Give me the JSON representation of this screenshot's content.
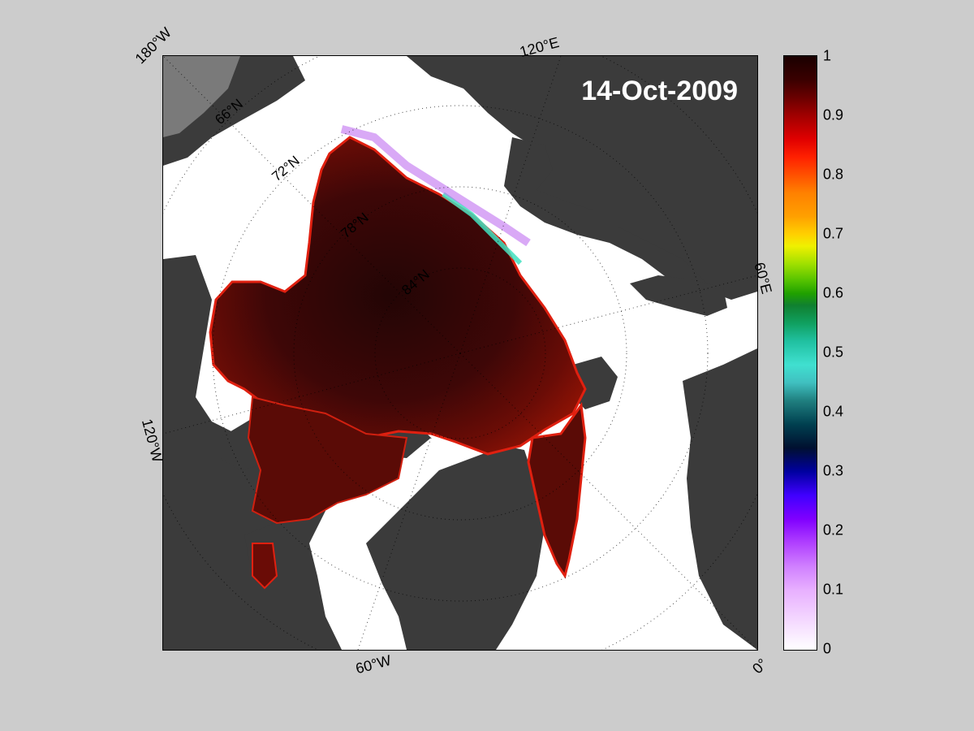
{
  "map": {
    "date_label": "14-Oct-2009",
    "meridian_labels": [
      "180°W",
      "120°E",
      "60°E",
      "0°",
      "60°W",
      "120°W"
    ],
    "parallel_labels": [
      "66°N",
      "72°N",
      "78°N",
      "84°N"
    ],
    "colors": {
      "land": "#3b3b3b",
      "ocean_open": "#ffffff",
      "ice_core": "#2a0606",
      "ice_body": "#5a0b06",
      "background": "#cccccc"
    }
  },
  "colorbar": {
    "ticks": [
      "1",
      "0.9",
      "0.8",
      "0.7",
      "0.6",
      "0.5",
      "0.4",
      "0.3",
      "0.2",
      "0.1",
      "0"
    ],
    "min": 0,
    "max": 1
  }
}
